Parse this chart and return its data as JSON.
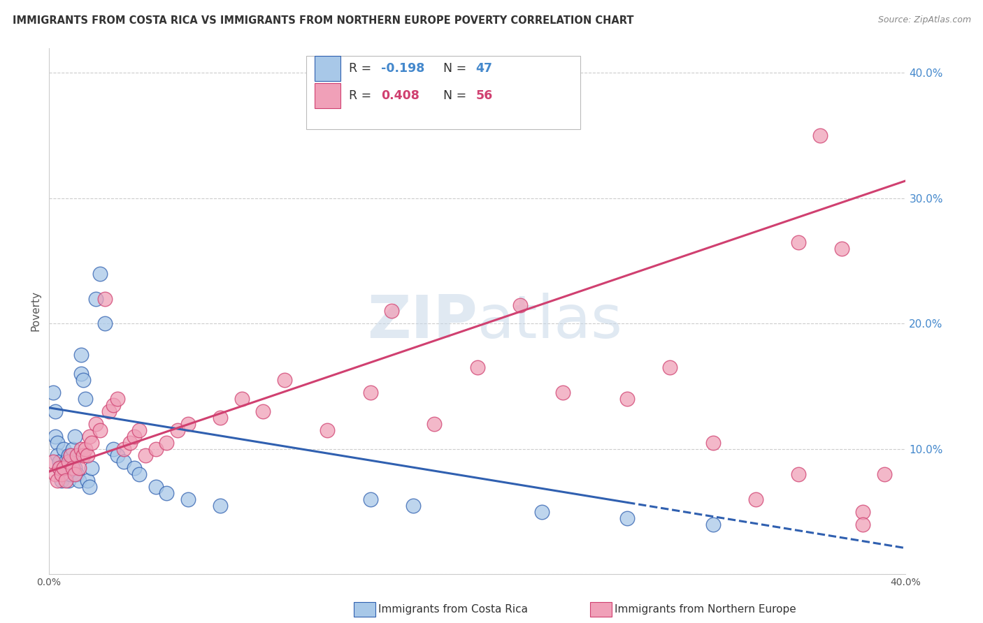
{
  "title": "IMMIGRANTS FROM COSTA RICA VS IMMIGRANTS FROM NORTHERN EUROPE POVERTY CORRELATION CHART",
  "source": "Source: ZipAtlas.com",
  "ylabel": "Poverty",
  "xlim": [
    0.0,
    0.4
  ],
  "ylim": [
    0.0,
    0.42
  ],
  "xticks": [
    0.0,
    0.1,
    0.2,
    0.3,
    0.4
  ],
  "yticks": [
    0.0,
    0.1,
    0.2,
    0.3,
    0.4
  ],
  "ytick_labels_right": [
    "",
    "10.0%",
    "20.0%",
    "30.0%",
    "40.0%"
  ],
  "legend_r1": "-0.198",
  "legend_n1": "47",
  "legend_r2": "0.408",
  "legend_n2": "56",
  "color_blue": "#a8c8e8",
  "color_pink": "#f0a0b8",
  "line_blue": "#3060b0",
  "line_pink": "#d04070",
  "watermark_color": "#c8d8e8",
  "background": "#ffffff",
  "blue_intercept": 0.133,
  "blue_slope": -0.28,
  "pink_intercept": 0.082,
  "pink_slope": 0.58,
  "blue_x": [
    0.002,
    0.003,
    0.003,
    0.004,
    0.004,
    0.005,
    0.005,
    0.006,
    0.006,
    0.007,
    0.007,
    0.008,
    0.008,
    0.009,
    0.009,
    0.01,
    0.01,
    0.011,
    0.011,
    0.012,
    0.012,
    0.013,
    0.014,
    0.015,
    0.015,
    0.016,
    0.017,
    0.018,
    0.019,
    0.02,
    0.022,
    0.024,
    0.026,
    0.03,
    0.032,
    0.035,
    0.04,
    0.042,
    0.05,
    0.055,
    0.065,
    0.08,
    0.15,
    0.17,
    0.23,
    0.27,
    0.31
  ],
  "blue_y": [
    0.145,
    0.13,
    0.11,
    0.105,
    0.095,
    0.09,
    0.085,
    0.08,
    0.075,
    0.1,
    0.085,
    0.09,
    0.08,
    0.095,
    0.075,
    0.08,
    0.095,
    0.09,
    0.1,
    0.11,
    0.085,
    0.08,
    0.075,
    0.16,
    0.175,
    0.155,
    0.14,
    0.075,
    0.07,
    0.085,
    0.22,
    0.24,
    0.2,
    0.1,
    0.095,
    0.09,
    0.085,
    0.08,
    0.07,
    0.065,
    0.06,
    0.055,
    0.06,
    0.055,
    0.05,
    0.045,
    0.04
  ],
  "pink_x": [
    0.002,
    0.003,
    0.004,
    0.005,
    0.006,
    0.007,
    0.008,
    0.009,
    0.01,
    0.011,
    0.012,
    0.013,
    0.014,
    0.015,
    0.016,
    0.017,
    0.018,
    0.019,
    0.02,
    0.022,
    0.024,
    0.026,
    0.028,
    0.03,
    0.032,
    0.035,
    0.038,
    0.04,
    0.042,
    0.045,
    0.05,
    0.055,
    0.06,
    0.065,
    0.08,
    0.09,
    0.1,
    0.11,
    0.13,
    0.15,
    0.16,
    0.18,
    0.2,
    0.22,
    0.24,
    0.27,
    0.29,
    0.31,
    0.33,
    0.35,
    0.36,
    0.37,
    0.38,
    0.39,
    0.35,
    0.38
  ],
  "pink_y": [
    0.09,
    0.08,
    0.075,
    0.085,
    0.08,
    0.085,
    0.075,
    0.09,
    0.095,
    0.085,
    0.08,
    0.095,
    0.085,
    0.1,
    0.095,
    0.1,
    0.095,
    0.11,
    0.105,
    0.12,
    0.115,
    0.22,
    0.13,
    0.135,
    0.14,
    0.1,
    0.105,
    0.11,
    0.115,
    0.095,
    0.1,
    0.105,
    0.115,
    0.12,
    0.125,
    0.14,
    0.13,
    0.155,
    0.115,
    0.145,
    0.21,
    0.12,
    0.165,
    0.215,
    0.145,
    0.14,
    0.165,
    0.105,
    0.06,
    0.08,
    0.35,
    0.26,
    0.05,
    0.08,
    0.265,
    0.04
  ]
}
